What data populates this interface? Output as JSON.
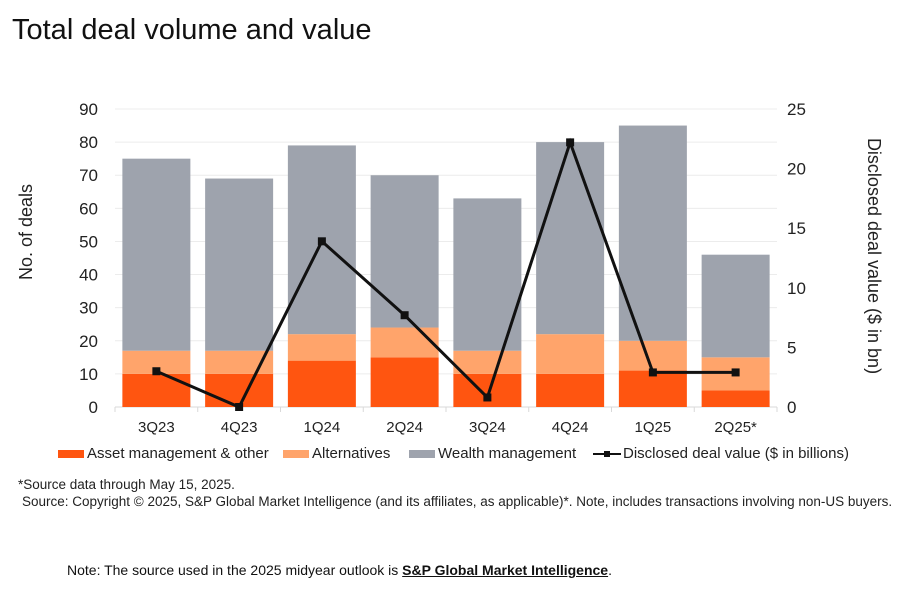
{
  "title": "Total deal volume and value",
  "chart_data": {
    "type": "bar",
    "stacked": true,
    "title": "Total deal volume and value",
    "categories": [
      "3Q23",
      "4Q23",
      "1Q24",
      "2Q24",
      "3Q24",
      "4Q24",
      "1Q25",
      "2Q25*"
    ],
    "series": [
      {
        "name": "Asset management & other",
        "color": "#FF5510",
        "values": [
          10,
          10,
          14,
          15,
          10,
          10,
          11,
          5
        ]
      },
      {
        "name": "Alternatives",
        "color": "#FFA46B",
        "values": [
          7,
          7,
          8,
          9,
          7,
          12,
          9,
          10
        ]
      },
      {
        "name": "Wealth management",
        "color": "#9EA3AD",
        "values": [
          58,
          52,
          57,
          46,
          46,
          58,
          65,
          31
        ]
      }
    ],
    "line_series": {
      "name": "Disclosed deal value ($ in billions)",
      "color": "#111111",
      "axis": "right",
      "values": [
        3.0,
        0.0,
        13.9,
        7.7,
        0.8,
        22.2,
        2.9,
        2.9
      ]
    },
    "ylabel": "No. of deals",
    "ylim": [
      0,
      90
    ],
    "yticks": [
      "0",
      "10",
      "20",
      "30",
      "40",
      "50",
      "60",
      "70",
      "80",
      "90"
    ],
    "y2label": "Disclosed deal value ($ in bn)",
    "y2lim": [
      0,
      25
    ],
    "y2ticks": [
      "0",
      "5",
      "10",
      "15",
      "20",
      "25"
    ],
    "grid": true,
    "legend": "bottom"
  },
  "notes": {
    "footnote": "*Source data through May 15, 2025.",
    "source": "Source: Copyright © 2025, S&P Global Market Intelligence (and its affiliates, as applicable)*. Note, includes transactions involving non-US buyers.",
    "note_prefix": "Note: The source used in the 2025 midyear outlook is ",
    "note_link": "S&P Global Market Intelligence",
    "note_suffix": "."
  }
}
